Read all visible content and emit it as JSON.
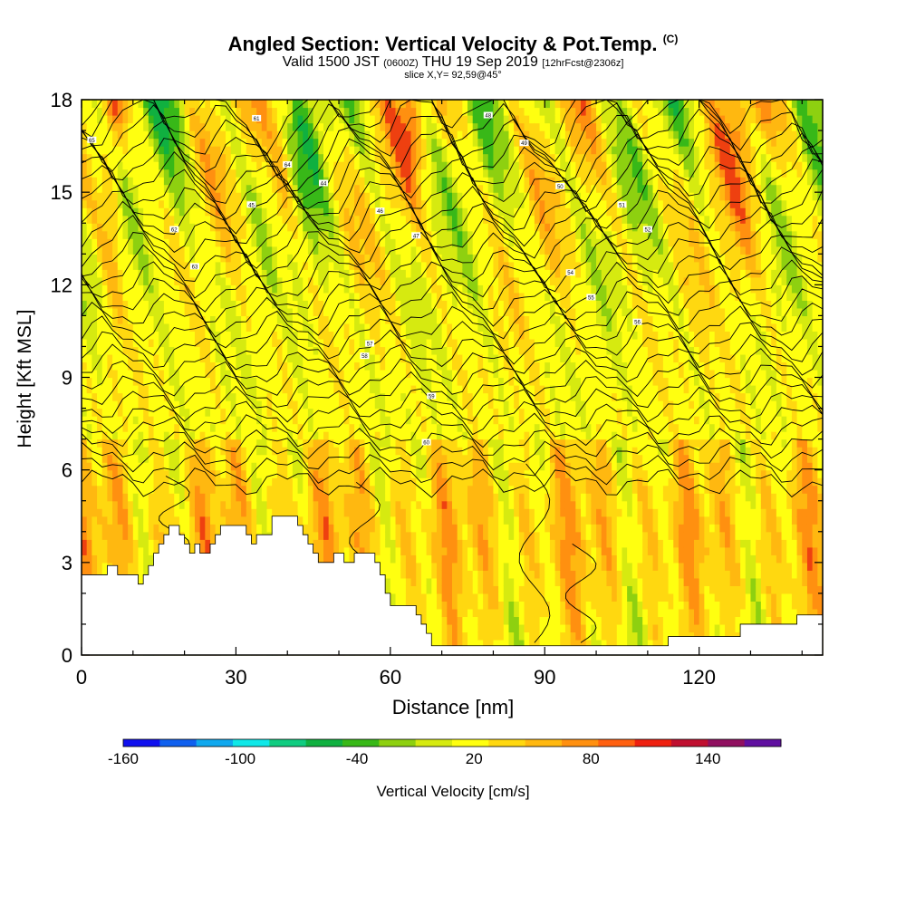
{
  "header": {
    "title": "Angled Section: Vertical Velocity & Pot.Temp.",
    "title_mark": "(C)",
    "valid_a": "Valid 1500 JST",
    "valid_b": "(0600Z)",
    "valid_c": "THU 19 Sep 2019",
    "valid_d": "[12hrFcst@2306z]",
    "slice": "slice X,Y= 92,59@45°"
  },
  "chart_data": {
    "type": "heatmap",
    "xlabel": "Distance [nm]",
    "ylabel": "Height [Kft MSL]",
    "xlim": [
      0,
      144
    ],
    "ylim": [
      0,
      18
    ],
    "x_ticks": [
      0,
      30,
      60,
      90,
      120
    ],
    "y_ticks": [
      0,
      3,
      6,
      9,
      12,
      15,
      18
    ],
    "colorbar": {
      "label": "Vertical Velocity [cm/s]",
      "tick_labels": [
        "-160",
        "-100",
        "-40",
        "20",
        "80",
        "140"
      ],
      "tick_values": [
        -160,
        -100,
        -40,
        20,
        80,
        140
      ],
      "colors": [
        "#1010ee",
        "#1060ee",
        "#10a8ee",
        "#10e8e8",
        "#10cc80",
        "#10b040",
        "#38b818",
        "#8ed010",
        "#d6ea10",
        "#ffff10",
        "#ffd810",
        "#ffb810",
        "#ff9010",
        "#ff6010",
        "#ee2010",
        "#c01030",
        "#901060",
        "#6010a0"
      ]
    },
    "terrain_kft": [
      [
        0,
        2.6
      ],
      [
        3,
        2.6
      ],
      [
        5,
        2.9
      ],
      [
        7,
        2.6
      ],
      [
        10,
        2.6
      ],
      [
        11,
        2.3
      ],
      [
        12,
        2.6
      ],
      [
        13,
        2.9
      ],
      [
        14,
        3.3
      ],
      [
        15,
        3.6
      ],
      [
        16,
        3.9
      ],
      [
        17,
        4.2
      ],
      [
        18,
        4.2
      ],
      [
        19,
        3.9
      ],
      [
        20,
        3.6
      ],
      [
        21,
        3.3
      ],
      [
        22,
        3.6
      ],
      [
        23,
        3.3
      ],
      [
        25,
        3.6
      ],
      [
        26,
        3.9
      ],
      [
        27,
        4.2
      ],
      [
        31,
        4.2
      ],
      [
        32,
        3.9
      ],
      [
        33,
        3.6
      ],
      [
        34,
        3.9
      ],
      [
        37,
        4.5
      ],
      [
        41,
        4.5
      ],
      [
        42,
        4.2
      ],
      [
        43,
        3.9
      ],
      [
        44,
        3.6
      ],
      [
        45,
        3.3
      ],
      [
        46,
        3.0
      ],
      [
        48,
        3.0
      ],
      [
        49,
        3.3
      ],
      [
        51,
        3.0
      ],
      [
        53,
        3.3
      ],
      [
        56,
        3.3
      ],
      [
        57,
        3.0
      ],
      [
        58,
        2.6
      ],
      [
        59,
        2.0
      ],
      [
        60,
        1.6
      ],
      [
        64,
        1.6
      ],
      [
        65,
        1.3
      ],
      [
        66,
        1.0
      ],
      [
        67,
        0.7
      ],
      [
        68,
        0.3
      ],
      [
        113,
        0.3
      ],
      [
        114,
        0.6
      ],
      [
        127,
        0.6
      ],
      [
        128,
        1.0
      ],
      [
        138,
        1.0
      ],
      [
        139,
        1.3
      ],
      [
        144,
        1.3
      ]
    ],
    "contour_labels": [
      "65",
      "61",
      "62",
      "63",
      "64",
      "44",
      "45",
      "46",
      "47",
      "48",
      "49",
      "50",
      "51",
      "52",
      "54",
      "55",
      "56",
      "57",
      "58",
      "59",
      "60"
    ]
  }
}
